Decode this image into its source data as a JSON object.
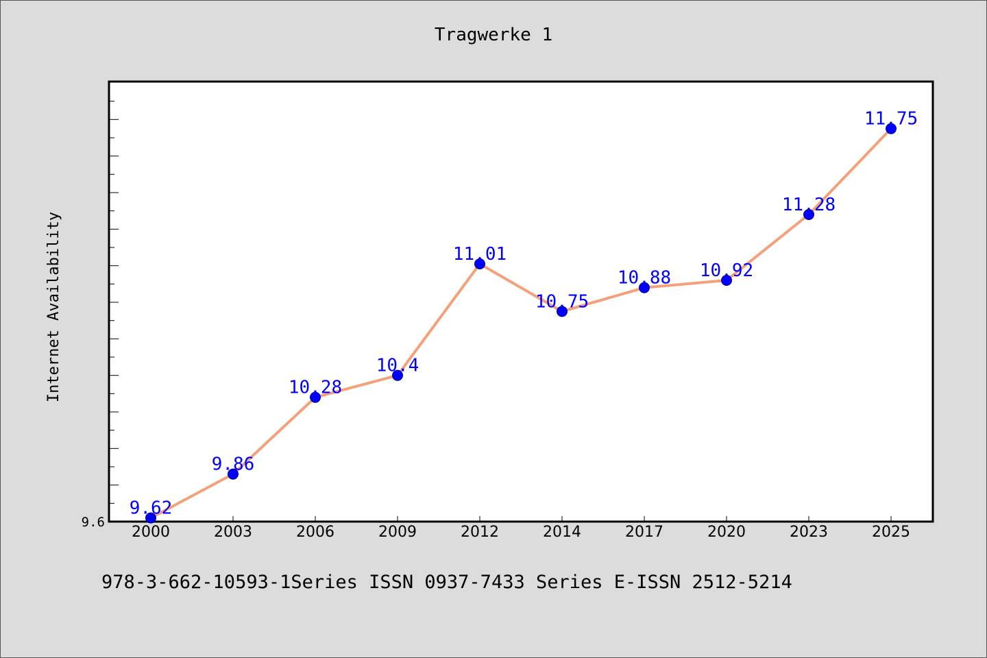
{
  "chart": {
    "title": "Tragwerke 1",
    "footer": "978-3-662-10593-1Series ISSN 0937-7433 Series E-ISSN 2512-5214"
  },
  "chart_data": {
    "type": "line",
    "title": "Tragwerke 1",
    "xlabel": "",
    "ylabel": "Internet Availability",
    "categories": [
      "2000",
      "2003",
      "2006",
      "2009",
      "2012",
      "2014",
      "2017",
      "2020",
      "2023",
      "2025"
    ],
    "series": [
      {
        "values": [
          9.62,
          9.86,
          10.28,
          10.4,
          11.01,
          10.75,
          10.88,
          10.92,
          11.28,
          11.75
        ]
      }
    ],
    "data_labels": [
      "9.62",
      "9.86",
      "10.28",
      "10.4",
      "11.01",
      "10.75",
      "10.88",
      "10.92",
      "11.28",
      "11.75"
    ],
    "ylim": [
      9.6,
      12.0
    ],
    "yticks_labeled": [
      "9.6"
    ],
    "grid": false,
    "legend": "none",
    "colors": {
      "line": "#f4a07a",
      "marker": "#0000ff",
      "labels": "#0000ff",
      "background": "#dcdcdc",
      "plot_area": "#ffffff"
    }
  }
}
